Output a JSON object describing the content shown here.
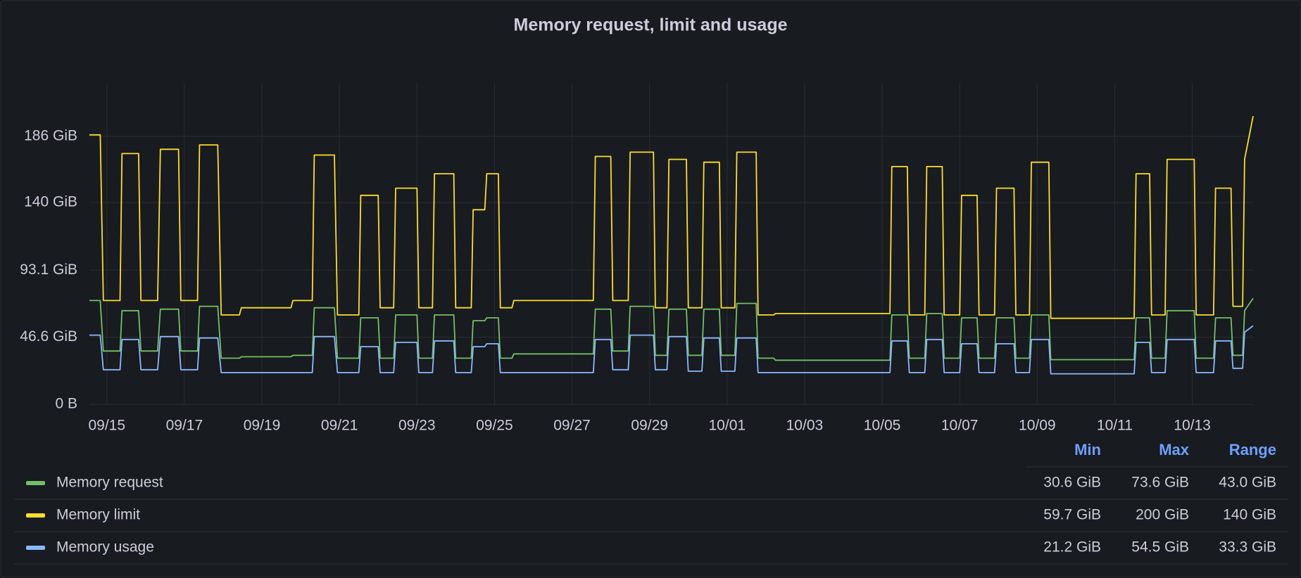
{
  "chart_data": {
    "type": "line",
    "title": "Memory request, limit and usage",
    "grid": true,
    "xlim": [
      -0.45,
      29.57
    ],
    "xticks": [
      {
        "value": 0,
        "label": "09/15"
      },
      {
        "value": 2,
        "label": "09/17"
      },
      {
        "value": 4,
        "label": "09/19"
      },
      {
        "value": 6,
        "label": "09/21"
      },
      {
        "value": 8,
        "label": "09/23"
      },
      {
        "value": 10,
        "label": "09/25"
      },
      {
        "value": 12,
        "label": "09/27"
      },
      {
        "value": 14,
        "label": "09/29"
      },
      {
        "value": 16,
        "label": "10/01"
      },
      {
        "value": 18,
        "label": "10/03"
      },
      {
        "value": 20,
        "label": "10/05"
      },
      {
        "value": 22,
        "label": "10/07"
      },
      {
        "value": 24,
        "label": "10/09"
      },
      {
        "value": 26,
        "label": "10/11"
      },
      {
        "value": 28,
        "label": "10/13"
      }
    ],
    "ylim": [
      0,
      223
    ],
    "yticks": [
      {
        "value": 0,
        "label": "0 B"
      },
      {
        "value": 46.6,
        "label": "46.6 GiB"
      },
      {
        "value": 93.1,
        "label": "93.1 GiB"
      },
      {
        "value": 140,
        "label": "140 GiB"
      },
      {
        "value": 186,
        "label": "186 GiB"
      }
    ],
    "x": [
      -0.45,
      -0.17,
      -0.09,
      0.34,
      0.39,
      0.82,
      0.88,
      1.31,
      1.38,
      1.85,
      1.91,
      2.34,
      2.39,
      2.86,
      2.95,
      3.42,
      3.47,
      4.75,
      4.8,
      5.3,
      5.35,
      5.87,
      5.95,
      6.5,
      6.55,
      7.0,
      7.05,
      7.4,
      7.45,
      8.0,
      8.05,
      8.4,
      8.45,
      8.95,
      9.0,
      9.4,
      9.45,
      9.75,
      9.8,
      10.1,
      10.15,
      10.45,
      10.5,
      12.55,
      12.6,
      13.0,
      13.05,
      13.45,
      13.5,
      14.1,
      14.15,
      14.45,
      14.5,
      14.95,
      15.0,
      15.35,
      15.4,
      15.8,
      15.85,
      16.2,
      16.25,
      16.75,
      16.8,
      17.2,
      17.25,
      20.2,
      20.25,
      20.65,
      20.7,
      21.1,
      21.15,
      21.55,
      21.6,
      22.0,
      22.05,
      22.45,
      22.5,
      22.9,
      22.95,
      23.4,
      23.45,
      23.8,
      23.85,
      24.3,
      24.35,
      26.5,
      26.55,
      26.9,
      26.95,
      27.3,
      27.35,
      28.05,
      28.1,
      28.55,
      28.6,
      29.0,
      29.05,
      29.3,
      29.35,
      29.57
    ],
    "series": [
      {
        "name": "Memory request",
        "color": "#73bf69",
        "values": [
          72,
          72,
          37,
          37,
          65,
          65,
          37,
          37,
          66,
          66,
          37,
          37,
          68,
          68,
          32,
          32,
          33,
          33,
          34,
          34,
          67,
          67,
          32,
          32,
          60,
          60,
          32,
          32,
          62,
          62,
          32,
          32,
          62,
          62,
          32,
          32,
          58,
          58,
          60,
          60,
          32,
          32,
          35,
          35,
          66,
          66,
          37,
          37,
          68,
          68,
          34,
          34,
          66,
          66,
          34,
          34,
          66,
          66,
          34,
          34,
          70,
          70,
          32,
          32,
          30.6,
          30.6,
          62,
          62,
          32,
          32,
          63,
          63,
          32,
          32,
          60,
          60,
          32,
          32,
          60,
          60,
          32,
          32,
          62,
          62,
          31,
          31,
          60,
          60,
          32,
          32,
          65,
          65,
          32,
          32,
          60,
          60,
          34,
          34,
          65,
          73.6
        ]
      },
      {
        "name": "Memory limit",
        "color": "#fade2a",
        "values": [
          187,
          187,
          72,
          72,
          174,
          174,
          72,
          72,
          177,
          177,
          72,
          72,
          180,
          180,
          62,
          62,
          67,
          67,
          72,
          72,
          173,
          173,
          62,
          62,
          145,
          145,
          67,
          67,
          150,
          150,
          67,
          67,
          160,
          160,
          67,
          67,
          135,
          135,
          160,
          160,
          67,
          67,
          72,
          72,
          172,
          172,
          72,
          72,
          175,
          175,
          67,
          67,
          170,
          170,
          67,
          67,
          168,
          168,
          67,
          67,
          175,
          175,
          62,
          62,
          63,
          63,
          165,
          165,
          62,
          62,
          165,
          165,
          62,
          62,
          145,
          145,
          62,
          62,
          150,
          150,
          62,
          62,
          168,
          168,
          59.7,
          59.7,
          160,
          160,
          62,
          62,
          170,
          170,
          62,
          62,
          150,
          150,
          68,
          68,
          170,
          200
        ]
      },
      {
        "name": "Memory usage",
        "color": "#8ab8ff",
        "values": [
          48,
          48,
          24,
          24,
          45,
          45,
          24,
          24,
          47,
          47,
          24,
          24,
          46,
          46,
          22,
          22,
          22,
          22,
          22,
          22,
          47,
          47,
          22,
          22,
          40,
          40,
          22,
          22,
          43,
          43,
          22,
          22,
          44,
          44,
          22,
          22,
          40,
          40,
          42,
          42,
          22,
          22,
          22,
          22,
          45,
          45,
          24,
          24,
          48,
          48,
          24,
          24,
          47,
          47,
          23,
          23,
          46,
          46,
          23,
          23,
          46,
          46,
          22,
          22,
          22,
          22,
          44,
          44,
          22,
          22,
          45,
          45,
          22,
          22,
          42,
          42,
          22,
          22,
          42,
          42,
          22,
          22,
          45,
          45,
          21.2,
          21.2,
          43,
          43,
          22,
          22,
          45,
          45,
          22,
          22,
          44,
          44,
          25,
          25,
          50,
          54.5
        ]
      }
    ],
    "legend_stats": {
      "columns": [
        "Min",
        "Max",
        "Range"
      ],
      "rows": [
        [
          "30.6 GiB",
          "73.6 GiB",
          "43.0 GiB"
        ],
        [
          "59.7 GiB",
          "200 GiB",
          "140 GiB"
        ],
        [
          "21.2 GiB",
          "54.5 GiB",
          "33.3 GiB"
        ]
      ]
    }
  }
}
